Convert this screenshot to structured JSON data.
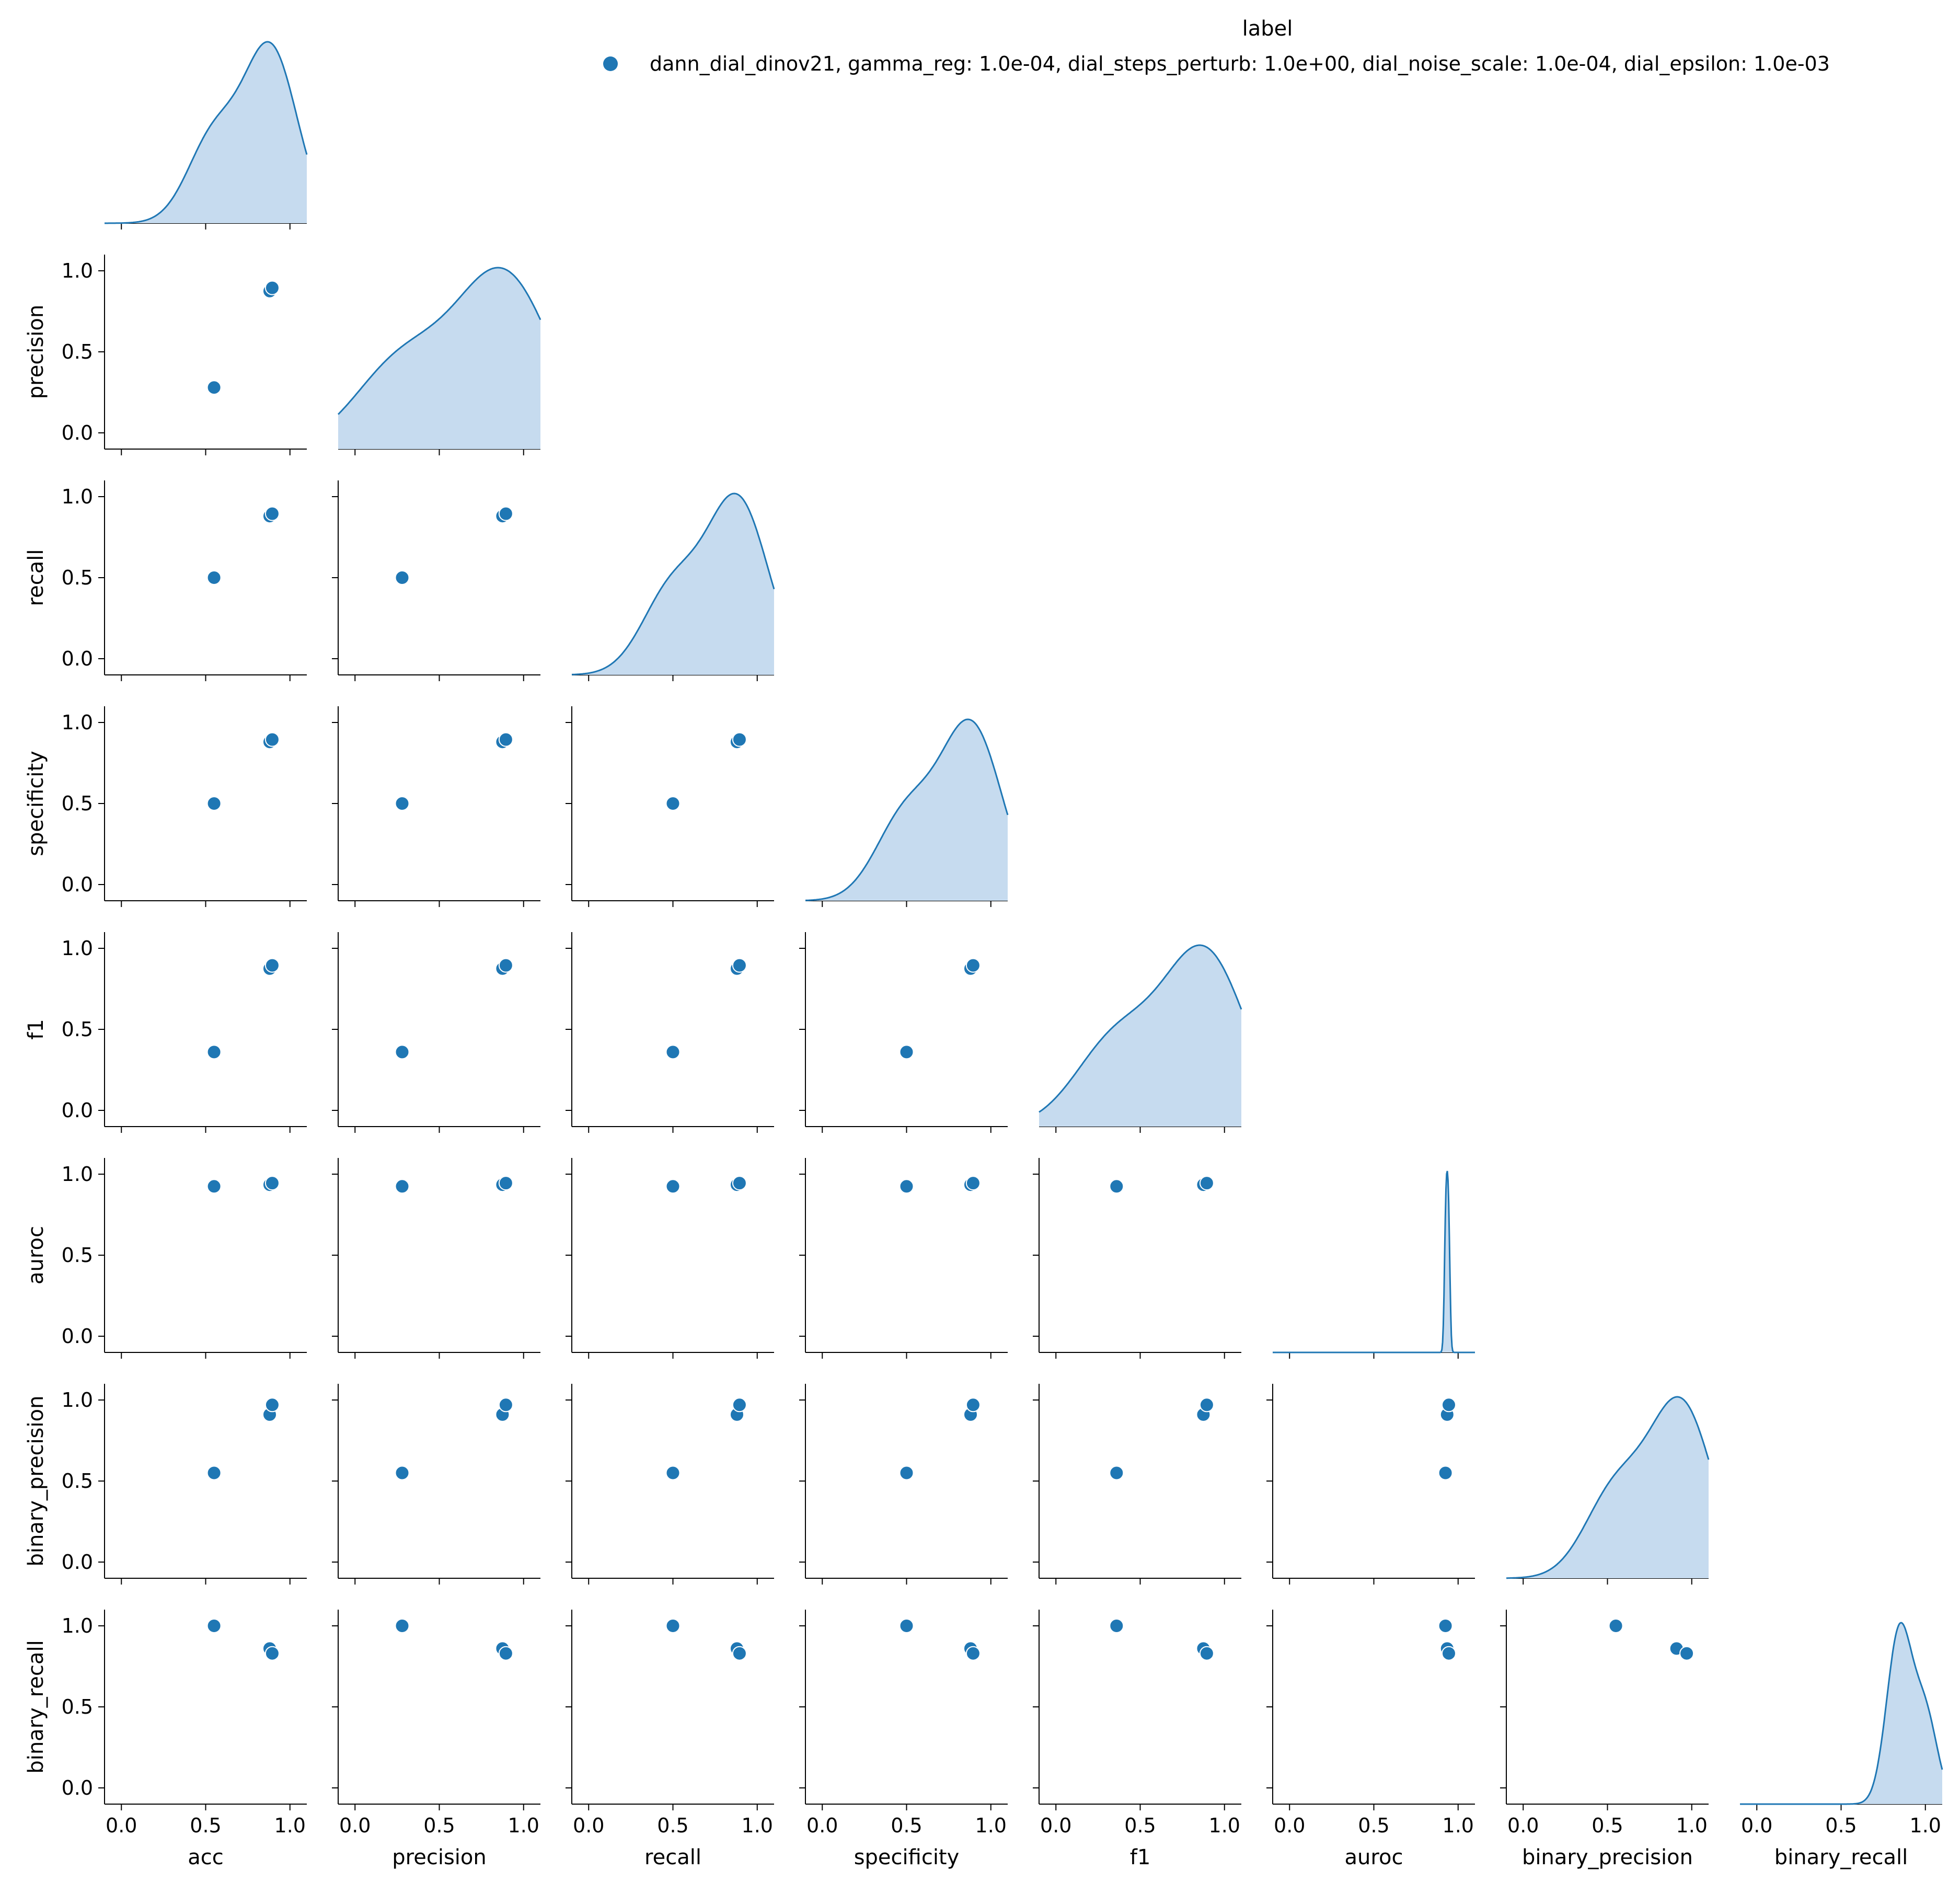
{
  "legend": {
    "title": "label",
    "entries": [
      "dann_dial_dinov21, gamma_reg: 1.0e-04, dial_steps_perturb: 1.0e+00, dial_noise_scale: 1.0e-04, dial_epsilon: 1.0e-03"
    ]
  },
  "colors": {
    "series": "#1f77b4",
    "kde_fill": "#c6dbef",
    "axis": "#000000",
    "background": "#ffffff"
  },
  "chart_data": {
    "type": "scatter",
    "subtype": "pairplot-lower-corner",
    "variables": [
      "acc",
      "precision",
      "recall",
      "specificity",
      "f1",
      "auroc",
      "binary_precision",
      "binary_recall"
    ],
    "axis_limits": [
      -0.1,
      1.1
    ],
    "ticks": [
      0.0,
      0.5,
      1.0
    ],
    "tick_labels": [
      "0.0",
      "0.5",
      "1.0"
    ],
    "diagonal": "kde",
    "points": [
      {
        "acc": 0.55,
        "precision": 0.28,
        "recall": 0.5,
        "specificity": 0.5,
        "f1": 0.36,
        "auroc": 0.925,
        "binary_precision": 0.55,
        "binary_recall": 1.0
      },
      {
        "acc": 0.88,
        "precision": 0.875,
        "recall": 0.88,
        "specificity": 0.88,
        "f1": 0.875,
        "auroc": 0.935,
        "binary_precision": 0.91,
        "binary_recall": 0.86
      },
      {
        "acc": 0.895,
        "precision": 0.895,
        "recall": 0.895,
        "specificity": 0.895,
        "f1": 0.895,
        "auroc": 0.945,
        "binary_precision": 0.97,
        "binary_recall": 0.83
      }
    ],
    "series": [
      {
        "name": "dann_dial_dinov21, gamma_reg: 1.0e-04, dial_steps_perturb: 1.0e+00, dial_noise_scale: 1.0e-04, dial_epsilon: 1.0e-03"
      }
    ],
    "grid": false,
    "legend_position": "top-right"
  }
}
